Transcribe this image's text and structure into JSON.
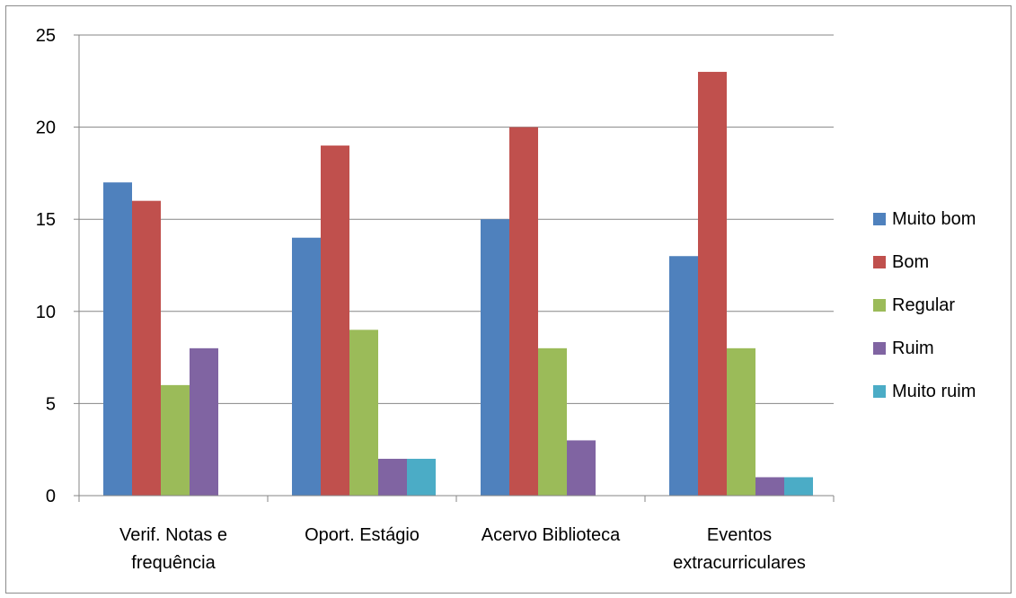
{
  "chart_data": {
    "type": "bar",
    "title": "",
    "xlabel": "",
    "ylabel": "",
    "ylim": [
      0,
      25
    ],
    "yticks": [
      0,
      5,
      10,
      15,
      20,
      25
    ],
    "grid": true,
    "legend_position": "right",
    "categories": [
      [
        "Verif. Notas e",
        "frequência"
      ],
      [
        "Oport. Estágio"
      ],
      [
        "Acervo Biblioteca"
      ],
      [
        "Eventos",
        "extracurriculares"
      ]
    ],
    "series": [
      {
        "name": "Muito bom",
        "color": "#4f81bd",
        "values": [
          17,
          14,
          15,
          13
        ]
      },
      {
        "name": "Bom",
        "color": "#c0504d",
        "values": [
          16,
          19,
          20,
          23
        ]
      },
      {
        "name": "Regular",
        "color": "#9bbb59",
        "values": [
          6,
          9,
          8,
          8
        ]
      },
      {
        "name": "Ruim",
        "color": "#8064a2",
        "values": [
          8,
          2,
          3,
          1
        ]
      },
      {
        "name": "Muito ruim",
        "color": "#4bacc6",
        "values": [
          0,
          2,
          0,
          1
        ]
      }
    ]
  }
}
